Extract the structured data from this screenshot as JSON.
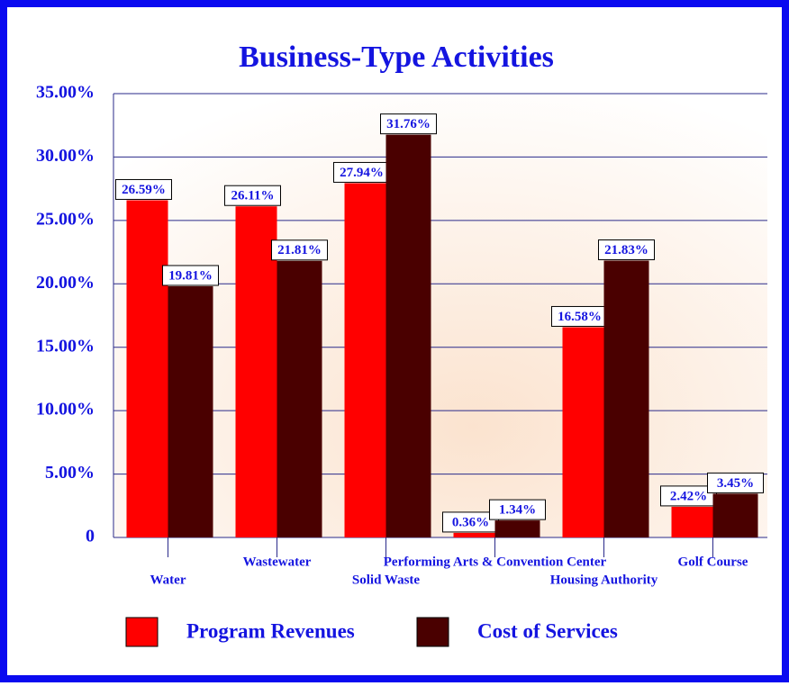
{
  "chart_data": {
    "type": "bar",
    "title": "Business-Type Activities",
    "categories": [
      "Water",
      "Wastewater",
      "Solid Waste",
      "Performing Arts & Convention Center",
      "Housing Authority",
      "Golf Course"
    ],
    "series": [
      {
        "name": "Program Revenues",
        "color": "#ff0000",
        "values": [
          26.59,
          26.11,
          27.94,
          0.36,
          16.58,
          2.42
        ],
        "value_labels": [
          "26.59%",
          "26.11%",
          "27.94%",
          "0.36%",
          "16.58%",
          "2.42%"
        ]
      },
      {
        "name": "Cost of Services",
        "color": "#4a0000",
        "values": [
          19.81,
          21.81,
          31.76,
          1.34,
          21.83,
          3.45
        ],
        "value_labels": [
          "19.81%",
          "21.81%",
          "31.76%",
          "1.34%",
          "21.83%",
          "3.45%"
        ]
      }
    ],
    "ylim": [
      0,
      35
    ],
    "yticks": [
      0,
      {
        "value": 5,
        "label": "5.00%"
      },
      {
        "value": 10,
        "label": "10.00%"
      },
      {
        "value": 15,
        "label": "15.00%"
      },
      {
        "value": 20,
        "label": "20.00%"
      },
      {
        "value": 25,
        "label": "25.00%"
      },
      {
        "value": 30,
        "label": "30.00%"
      },
      {
        "value": 35,
        "label": "35.00%"
      }
    ],
    "grid": true,
    "legend": "bottom"
  }
}
